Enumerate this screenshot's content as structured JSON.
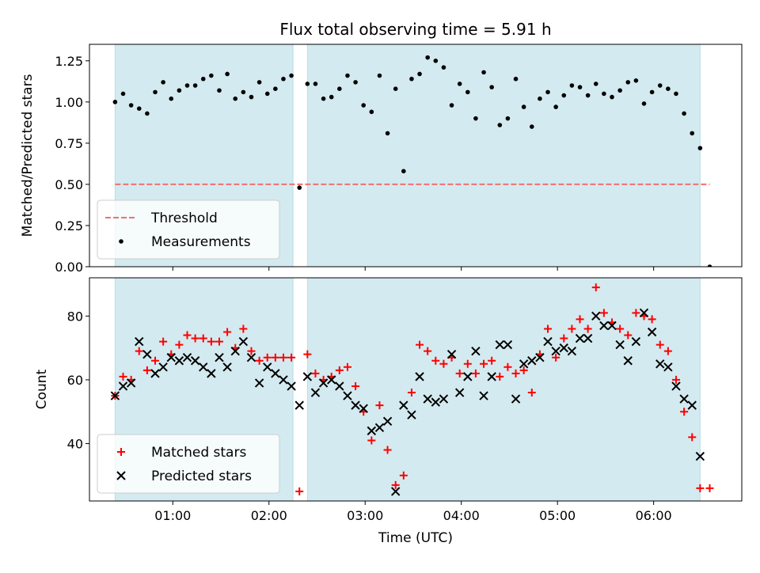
{
  "chart_data": [
    {
      "type": "scatter",
      "title": "Flux total observing time = 5.91 h",
      "xlabel": "",
      "ylabel": "Matched/Predicted stars",
      "ylim": [
        0,
        1.35
      ],
      "yticks": [
        "0.00",
        "0.25",
        "0.50",
        "0.75",
        "1.00",
        "1.25"
      ],
      "ytick_values": [
        0,
        0.25,
        0.5,
        0.75,
        1.0,
        1.25
      ],
      "xlim": [
        "00:08",
        "06:55"
      ],
      "legend_position": "lower-left",
      "shaded_intervals": [
        [
          "00:24",
          "02:15"
        ],
        [
          "02:24",
          "06:29"
        ]
      ],
      "threshold": {
        "name": "Threshold",
        "value": 0.5,
        "x_range": [
          "00:24",
          "06:35"
        ],
        "color": "#f07070"
      },
      "series": [
        {
          "name": "Measurements",
          "color": "#000000",
          "points": [
            [
              "00:24",
              1.0
            ],
            [
              "00:29",
              1.05
            ],
            [
              "00:34",
              0.98
            ],
            [
              "00:39",
              0.96
            ],
            [
              "00:44",
              0.93
            ],
            [
              "00:49",
              1.06
            ],
            [
              "00:54",
              1.12
            ],
            [
              "00:59",
              1.02
            ],
            [
              "01:04",
              1.07
            ],
            [
              "01:09",
              1.1
            ],
            [
              "01:14",
              1.1
            ],
            [
              "01:19",
              1.14
            ],
            [
              "01:24",
              1.16
            ],
            [
              "01:29",
              1.07
            ],
            [
              "01:34",
              1.17
            ],
            [
              "01:39",
              1.02
            ],
            [
              "01:44",
              1.06
            ],
            [
              "01:49",
              1.03
            ],
            [
              "01:54",
              1.12
            ],
            [
              "01:59",
              1.05
            ],
            [
              "02:04",
              1.08
            ],
            [
              "02:09",
              1.14
            ],
            [
              "02:14",
              1.16
            ],
            [
              "02:19",
              0.48
            ],
            [
              "02:24",
              1.11
            ],
            [
              "02:29",
              1.11
            ],
            [
              "02:34",
              1.02
            ],
            [
              "02:39",
              1.03
            ],
            [
              "02:44",
              1.08
            ],
            [
              "02:49",
              1.16
            ],
            [
              "02:54",
              1.12
            ],
            [
              "02:59",
              0.98
            ],
            [
              "03:04",
              0.94
            ],
            [
              "03:09",
              1.16
            ],
            [
              "03:14",
              0.81
            ],
            [
              "03:19",
              1.08
            ],
            [
              "03:24",
              0.58
            ],
            [
              "03:29",
              1.14
            ],
            [
              "03:34",
              1.17
            ],
            [
              "03:39",
              1.27
            ],
            [
              "03:44",
              1.25
            ],
            [
              "03:49",
              1.21
            ],
            [
              "03:54",
              0.98
            ],
            [
              "03:59",
              1.11
            ],
            [
              "04:04",
              1.06
            ],
            [
              "04:09",
              0.9
            ],
            [
              "04:14",
              1.18
            ],
            [
              "04:19",
              1.09
            ],
            [
              "04:24",
              0.86
            ],
            [
              "04:29",
              0.9
            ],
            [
              "04:34",
              1.14
            ],
            [
              "04:39",
              0.97
            ],
            [
              "04:44",
              0.85
            ],
            [
              "04:49",
              1.02
            ],
            [
              "04:54",
              1.06
            ],
            [
              "04:59",
              0.97
            ],
            [
              "05:04",
              1.04
            ],
            [
              "05:09",
              1.1
            ],
            [
              "05:14",
              1.09
            ],
            [
              "05:19",
              1.04
            ],
            [
              "05:24",
              1.11
            ],
            [
              "05:29",
              1.05
            ],
            [
              "05:34",
              1.03
            ],
            [
              "05:39",
              1.07
            ],
            [
              "05:44",
              1.12
            ],
            [
              "05:49",
              1.13
            ],
            [
              "05:54",
              0.99
            ],
            [
              "05:59",
              1.06
            ],
            [
              "06:04",
              1.1
            ],
            [
              "06:09",
              1.08
            ],
            [
              "06:14",
              1.05
            ],
            [
              "06:19",
              0.93
            ],
            [
              "06:24",
              0.81
            ],
            [
              "06:29",
              0.72
            ],
            [
              "06:35",
              0.0
            ]
          ]
        }
      ]
    },
    {
      "type": "scatter",
      "title": "",
      "xlabel": "Time (UTC)",
      "ylabel": "Count",
      "ylim": [
        22,
        92
      ],
      "yticks": [
        "40",
        "60",
        "80"
      ],
      "ytick_values": [
        40,
        60,
        80
      ],
      "xlim": [
        "00:08",
        "06:55"
      ],
      "xticks": [
        "01:00",
        "02:00",
        "03:00",
        "04:00",
        "05:00",
        "06:00"
      ],
      "legend_position": "lower-left",
      "shaded_intervals": [
        [
          "00:24",
          "02:15"
        ],
        [
          "02:24",
          "06:29"
        ]
      ],
      "series": [
        {
          "name": "Matched stars",
          "marker": "plus",
          "color": "#ff0000",
          "points": [
            [
              "00:24",
              55
            ],
            [
              "00:29",
              61
            ],
            [
              "00:34",
              60
            ],
            [
              "00:39",
              69
            ],
            [
              "00:44",
              63
            ],
            [
              "00:49",
              66
            ],
            [
              "00:54",
              72
            ],
            [
              "00:59",
              68
            ],
            [
              "01:04",
              71
            ],
            [
              "01:09",
              74
            ],
            [
              "01:14",
              73
            ],
            [
              "01:19",
              73
            ],
            [
              "01:24",
              72
            ],
            [
              "01:29",
              72
            ],
            [
              "01:34",
              75
            ],
            [
              "01:39",
              70
            ],
            [
              "01:44",
              76
            ],
            [
              "01:49",
              69
            ],
            [
              "01:54",
              66
            ],
            [
              "01:59",
              67
            ],
            [
              "02:04",
              67
            ],
            [
              "02:09",
              67
            ],
            [
              "02:14",
              67
            ],
            [
              "02:19",
              25
            ],
            [
              "02:24",
              68
            ],
            [
              "02:29",
              62
            ],
            [
              "02:34",
              60
            ],
            [
              "02:39",
              61
            ],
            [
              "02:44",
              63
            ],
            [
              "02:49",
              64
            ],
            [
              "02:54",
              58
            ],
            [
              "02:59",
              50
            ],
            [
              "03:04",
              41
            ],
            [
              "03:09",
              52
            ],
            [
              "03:14",
              38
            ],
            [
              "03:19",
              27
            ],
            [
              "03:24",
              30
            ],
            [
              "03:29",
              56
            ],
            [
              "03:34",
              71
            ],
            [
              "03:39",
              69
            ],
            [
              "03:44",
              66
            ],
            [
              "03:49",
              65
            ],
            [
              "03:54",
              67
            ],
            [
              "03:59",
              62
            ],
            [
              "04:04",
              65
            ],
            [
              "04:09",
              62
            ],
            [
              "04:14",
              65
            ],
            [
              "04:19",
              66
            ],
            [
              "04:24",
              61
            ],
            [
              "04:29",
              64
            ],
            [
              "04:34",
              62
            ],
            [
              "04:39",
              63
            ],
            [
              "04:44",
              56
            ],
            [
              "04:49",
              68
            ],
            [
              "04:54",
              76
            ],
            [
              "04:59",
              67
            ],
            [
              "05:04",
              73
            ],
            [
              "05:09",
              76
            ],
            [
              "05:14",
              79
            ],
            [
              "05:19",
              76
            ],
            [
              "05:24",
              89
            ],
            [
              "05:29",
              81
            ],
            [
              "05:34",
              78
            ],
            [
              "05:39",
              76
            ],
            [
              "05:44",
              74
            ],
            [
              "05:49",
              81
            ],
            [
              "05:54",
              80
            ],
            [
              "05:59",
              79
            ],
            [
              "06:04",
              71
            ],
            [
              "06:09",
              69
            ],
            [
              "06:14",
              60
            ],
            [
              "06:19",
              50
            ],
            [
              "06:24",
              42
            ],
            [
              "06:29",
              26
            ],
            [
              "06:35",
              26
            ]
          ]
        },
        {
          "name": "Predicted stars",
          "marker": "x",
          "color": "#000000",
          "points": [
            [
              "00:24",
              55
            ],
            [
              "00:29",
              58
            ],
            [
              "00:34",
              59
            ],
            [
              "00:39",
              72
            ],
            [
              "00:44",
              68
            ],
            [
              "00:49",
              62
            ],
            [
              "00:54",
              64
            ],
            [
              "00:59",
              67
            ],
            [
              "01:04",
              66
            ],
            [
              "01:09",
              67
            ],
            [
              "01:14",
              66
            ],
            [
              "01:19",
              64
            ],
            [
              "01:24",
              62
            ],
            [
              "01:29",
              67
            ],
            [
              "01:34",
              64
            ],
            [
              "01:39",
              69
            ],
            [
              "01:44",
              72
            ],
            [
              "01:49",
              67
            ],
            [
              "01:54",
              59
            ],
            [
              "01:59",
              64
            ],
            [
              "02:04",
              62
            ],
            [
              "02:09",
              60
            ],
            [
              "02:14",
              58
            ],
            [
              "02:19",
              52
            ],
            [
              "02:24",
              61
            ],
            [
              "02:29",
              56
            ],
            [
              "02:34",
              59
            ],
            [
              "02:39",
              60
            ],
            [
              "02:44",
              58
            ],
            [
              "02:49",
              55
            ],
            [
              "02:54",
              52
            ],
            [
              "02:59",
              51
            ],
            [
              "03:04",
              44
            ],
            [
              "03:09",
              45
            ],
            [
              "03:14",
              47
            ],
            [
              "03:19",
              25
            ],
            [
              "03:24",
              52
            ],
            [
              "03:29",
              49
            ],
            [
              "03:34",
              61
            ],
            [
              "03:39",
              54
            ],
            [
              "03:44",
              53
            ],
            [
              "03:49",
              54
            ],
            [
              "03:54",
              68
            ],
            [
              "03:59",
              56
            ],
            [
              "04:04",
              61
            ],
            [
              "04:09",
              69
            ],
            [
              "04:14",
              55
            ],
            [
              "04:19",
              61
            ],
            [
              "04:24",
              71
            ],
            [
              "04:29",
              71
            ],
            [
              "04:34",
              54
            ],
            [
              "04:39",
              65
            ],
            [
              "04:44",
              66
            ],
            [
              "04:49",
              67
            ],
            [
              "04:54",
              72
            ],
            [
              "04:59",
              69
            ],
            [
              "05:04",
              70
            ],
            [
              "05:09",
              69
            ],
            [
              "05:14",
              73
            ],
            [
              "05:19",
              73
            ],
            [
              "05:24",
              80
            ],
            [
              "05:29",
              77
            ],
            [
              "05:34",
              77
            ],
            [
              "05:39",
              71
            ],
            [
              "05:44",
              66
            ],
            [
              "05:49",
              72
            ],
            [
              "05:54",
              81
            ],
            [
              "05:59",
              75
            ],
            [
              "06:04",
              65
            ],
            [
              "06:09",
              64
            ],
            [
              "06:14",
              58
            ],
            [
              "06:19",
              54
            ],
            [
              "06:24",
              52
            ],
            [
              "06:29",
              36
            ]
          ]
        }
      ]
    }
  ],
  "colors": {
    "shade": "#d3eaf0",
    "shade_edge": "#b8dde6",
    "threshold": "#f07070",
    "matched": "#ff0000",
    "predicted": "#000000"
  }
}
